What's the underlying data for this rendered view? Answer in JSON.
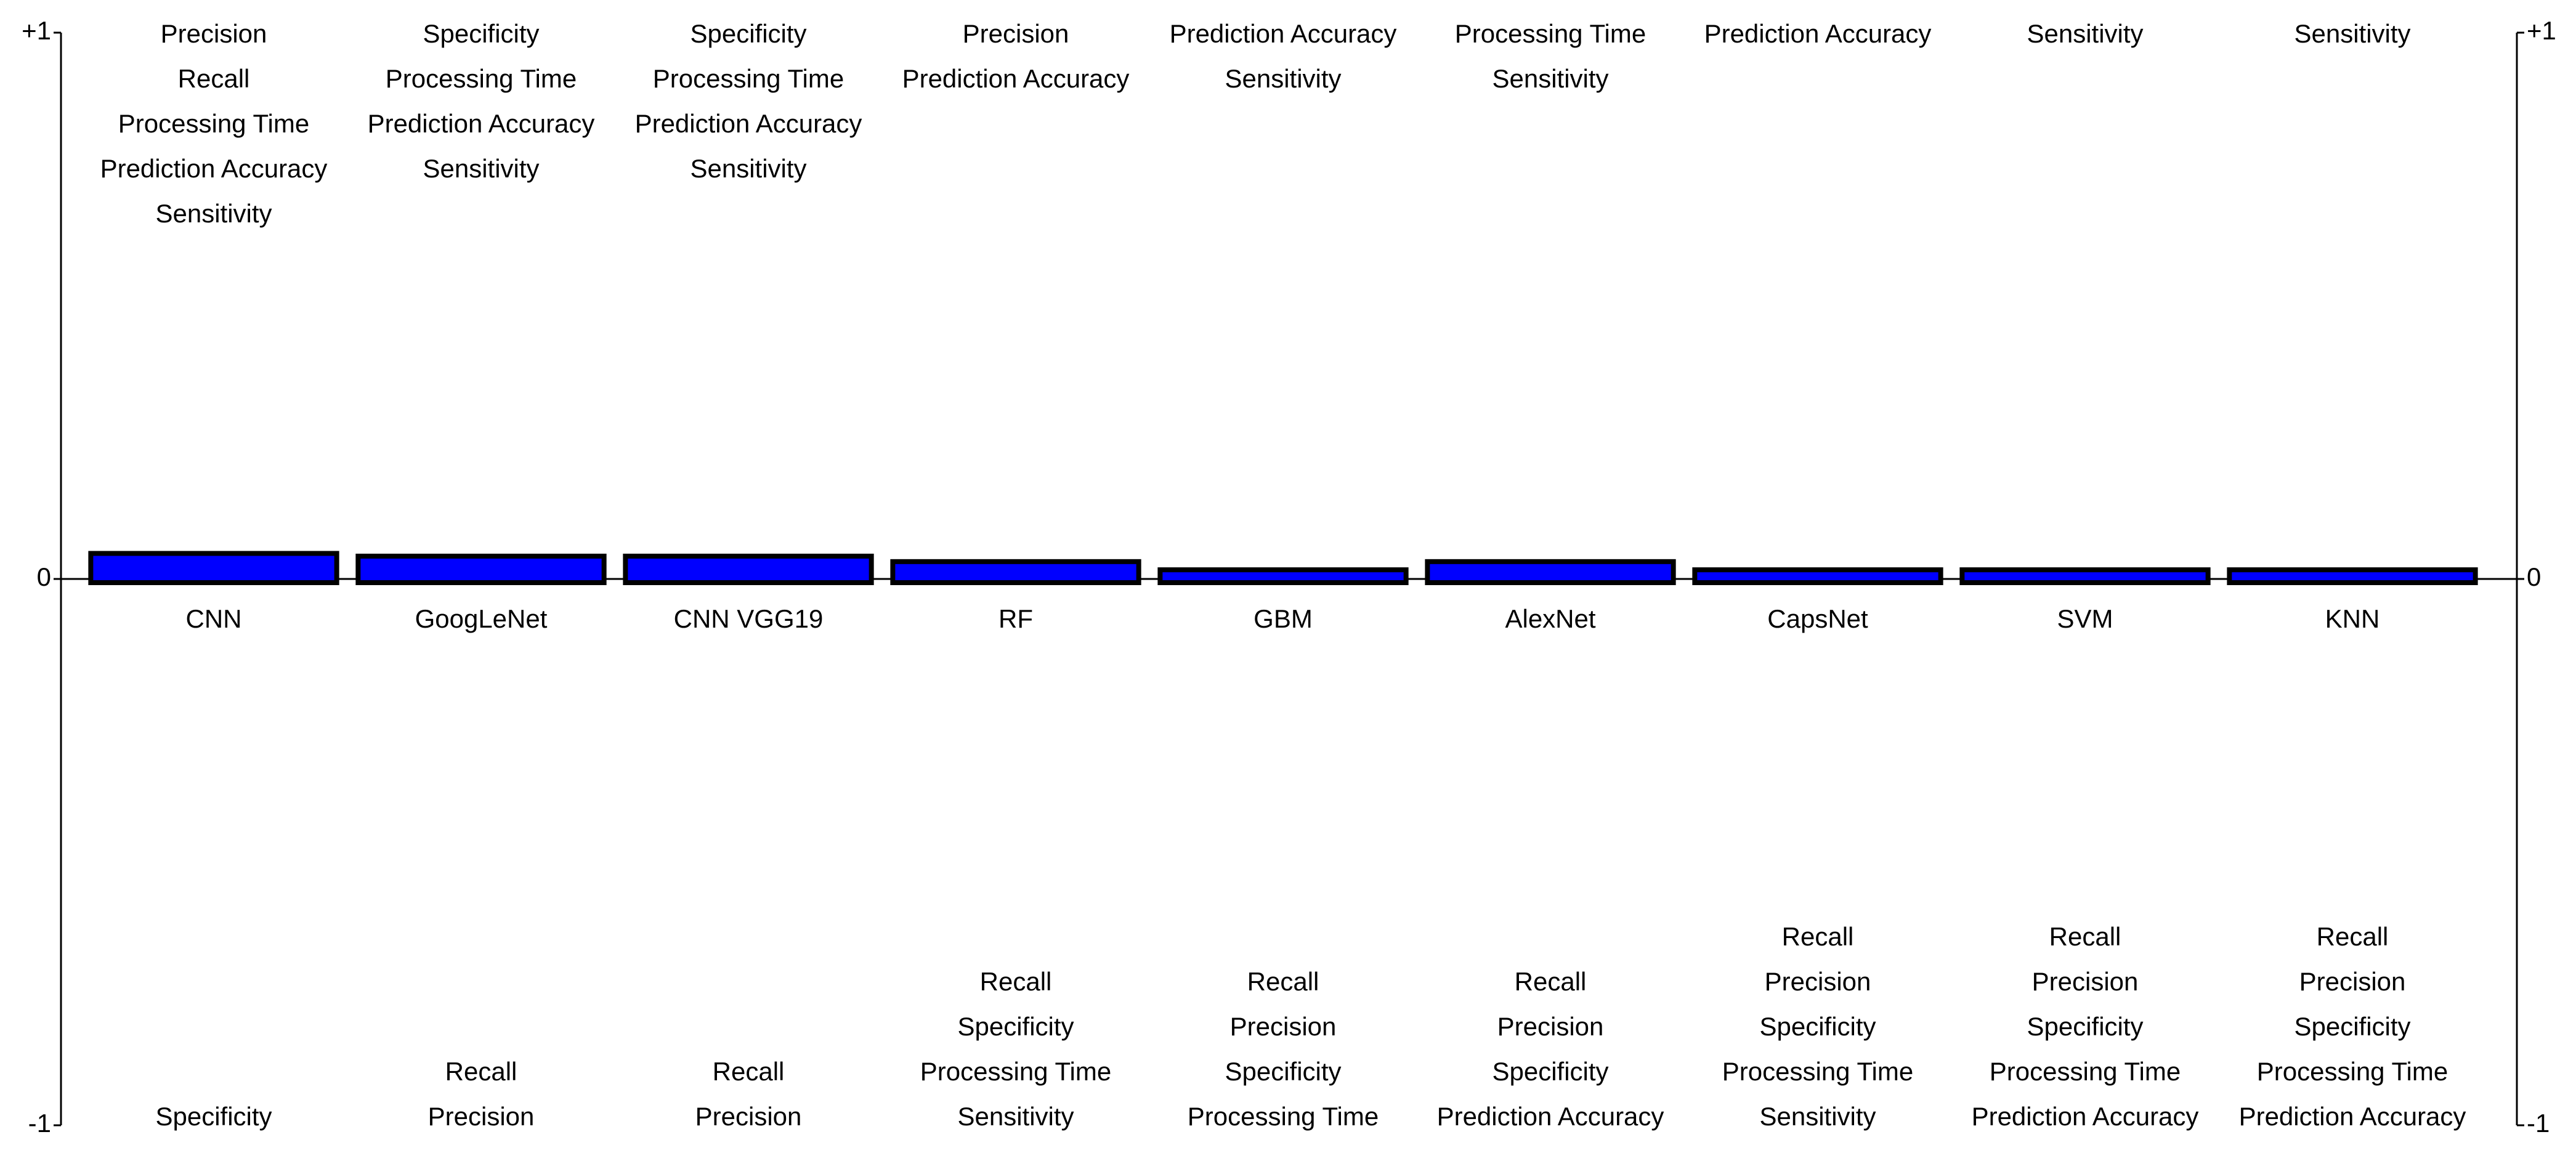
{
  "chart_data": {
    "type": "bar",
    "categories": [
      "CNN",
      "GoogLeNet",
      "CNN VGG19",
      "RF",
      "GBM",
      "AlexNet",
      "CapsNet",
      "SVM",
      "KNN"
    ],
    "values": [
      0.04,
      0.035,
      0.035,
      0.025,
      0.01,
      0.025,
      0.01,
      0.01,
      0.01
    ],
    "color": "#0000ff",
    "ylim": [
      -1,
      1
    ],
    "yticks": [
      {
        "value": 1,
        "label": "+1"
      },
      0,
      {
        "value": -1,
        "label": "-1"
      }
    ],
    "criteria_above": [
      [
        "Precision",
        "Recall",
        "Processing Time",
        "Prediction Accuracy",
        "Sensitivity"
      ],
      [
        "Specificity",
        "Processing Time",
        "Prediction Accuracy",
        "Sensitivity"
      ],
      [
        "Specificity",
        "Processing Time",
        "Prediction Accuracy",
        "Sensitivity"
      ],
      [
        "Precision",
        "Prediction Accuracy"
      ],
      [
        "Prediction Accuracy",
        "Sensitivity"
      ],
      [
        "Processing Time",
        "Sensitivity"
      ],
      [
        "Prediction Accuracy"
      ],
      [
        "Sensitivity"
      ],
      [
        "Sensitivity"
      ]
    ],
    "criteria_below": [
      [
        "Specificity"
      ],
      [
        "Recall",
        "Precision"
      ],
      [
        "Recall",
        "Precision"
      ],
      [
        "Recall",
        "Specificity",
        "Processing Time",
        "Sensitivity"
      ],
      [
        "Recall",
        "Precision",
        "Specificity",
        "Processing Time"
      ],
      [
        "Recall",
        "Precision",
        "Specificity",
        "Prediction Accuracy"
      ],
      [
        "Recall",
        "Precision",
        "Specificity",
        "Processing Time",
        "Sensitivity"
      ],
      [
        "Recall",
        "Precision",
        "Specificity",
        "Processing Time",
        "Prediction Accuracy"
      ],
      [
        "Recall",
        "Precision",
        "Specificity",
        "Processing Time",
        "Prediction Accuracy"
      ]
    ]
  }
}
